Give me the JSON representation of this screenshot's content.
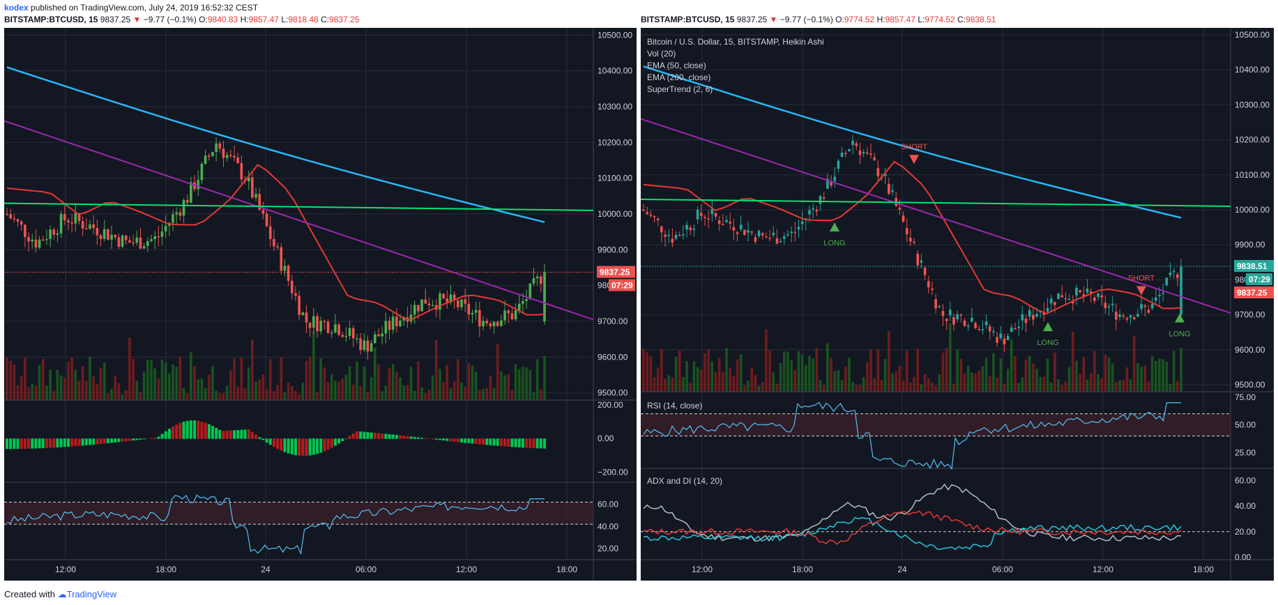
{
  "header": {
    "author": "kodex",
    "published": "published on TradingView.com, July 24, 2019 16:52:32 CEST"
  },
  "left": {
    "symbol": "BITSTAMP:BTCUSD, 15",
    "last": "9837.25",
    "change": "−9.77 (−0.1%)",
    "o_label": "O:",
    "o": "9840.83",
    "h_label": "H:",
    "h": "9857.47",
    "l_label": "L:",
    "l": "9818.48",
    "c_label": "C:",
    "c": "9837.25",
    "price_badge": "9837.25",
    "timer_badge": "07:29"
  },
  "right": {
    "symbol": "BITSTAMP:BTCUSD, 15",
    "last": "9837.25",
    "change": "−9.77 (−0.1%)",
    "o_label": "O:",
    "o": "9774.52",
    "h_label": "H:",
    "h": "9857.47",
    "l_label": "L:",
    "l": "9774.52",
    "c_label": "C:",
    "c": "9838.51",
    "indicators": [
      "Bitcoin / U.S. Dollar, 15, BITSTAMP, Heikin Ashi",
      "Vol (20)",
      "EMA (50, close)",
      "EMA (200, close)",
      "SuperTrend (2, 6)"
    ],
    "price_badge_teal": "9838.51",
    "timer_badge": "07:29",
    "price_badge_red": "9837.25",
    "rsi_label": "RSI (14, close)",
    "adx_label": "ADX and DI (14, 20)",
    "signals": [
      "LONG",
      "SHORT",
      "LONG",
      "SHORT",
      "LONG"
    ]
  },
  "footer": {
    "created_with": "Created with",
    "brand": "TradingView"
  },
  "colors": {
    "bg": "#131722",
    "up": "#26a69a",
    "up_green": "#4caf50",
    "down": "#ef5350",
    "ema50": "#e53935",
    "ema200": "#29b6f6",
    "trend_purple": "#9c27b0",
    "trend_green": "#00e676",
    "rsi": "#4fc3f7",
    "adx": "#b0bec5"
  },
  "chart_data": [
    {
      "type": "candlestick",
      "panel": "left-main",
      "title": "BITSTAMP:BTCUSD, 15",
      "ylim": [
        9480,
        10520
      ],
      "y_ticks": [
        "10500.00",
        "10400.00",
        "10300.00",
        "10200.00",
        "10100.00",
        "10000.00",
        "9900.00",
        "9800.00",
        "9700.00",
        "9600.00",
        "9500.00"
      ],
      "x_ticks": [
        "12:00",
        "18:00",
        "24",
        "06:00",
        "12:00",
        "18:00"
      ],
      "key_points": [
        {
          "t": "08:00",
          "price": 10000
        },
        {
          "t": "10:00",
          "price": 9920
        },
        {
          "t": "12:00",
          "price": 9990
        },
        {
          "t": "14:00",
          "price": 9960
        },
        {
          "t": "16:00",
          "price": 9920
        },
        {
          "t": "18:00",
          "price": 9930
        },
        {
          "t": "20:00",
          "price": 10040
        },
        {
          "t": "21:30",
          "price": 10200
        },
        {
          "t": "23:00",
          "price": 10100
        },
        {
          "t": "00:30",
          "price": 9900
        },
        {
          "t": "01:30",
          "price": 9700
        },
        {
          "t": "03:00",
          "price": 9690
        },
        {
          "t": "05:30",
          "price": 9630
        },
        {
          "t": "08:00",
          "price": 9700
        },
        {
          "t": "10:00",
          "price": 9760
        },
        {
          "t": "12:00",
          "price": 9750
        },
        {
          "t": "14:00",
          "price": 9700
        },
        {
          "t": "15:30",
          "price": 9720
        },
        {
          "t": "16:30",
          "price": 9840
        }
      ],
      "last_price": 9837.25
    },
    {
      "type": "bar",
      "panel": "left-histogram",
      "ylim": [
        -260,
        220
      ],
      "y_ticks": [
        "200.00",
        "0.00",
        "−200.00"
      ]
    },
    {
      "type": "line",
      "panel": "left-oscillator",
      "ylim": [
        10,
        78
      ],
      "y_ticks": [
        "60.00",
        "40.00",
        "20.00"
      ]
    },
    {
      "type": "candlestick",
      "panel": "right-main",
      "title": "Bitcoin / U.S. Dollar, 15, BITSTAMP, Heikin Ashi",
      "ylim": [
        9480,
        10520
      ],
      "y_ticks": [
        "10500.00",
        "10400.00",
        "10300.00",
        "10200.00",
        "10100.00",
        "10000.00",
        "9900.00",
        "9800.00",
        "9700.00",
        "9600.00",
        "9500.00"
      ],
      "x_ticks": [
        "12:00",
        "18:00",
        "24",
        "06:00",
        "12:00",
        "18:00"
      ],
      "last_price": 9838.51
    },
    {
      "type": "line",
      "panel": "right-rsi",
      "title": "RSI (14, close)",
      "ylim": [
        12,
        78
      ],
      "y_ticks": [
        "75.00",
        "50.00",
        "25.00"
      ]
    },
    {
      "type": "line",
      "panel": "right-adx",
      "title": "ADX and DI (14, 20)",
      "ylim": [
        -2,
        68
      ],
      "y_ticks": [
        "60.00",
        "40.00",
        "20.00",
        "0.00"
      ]
    }
  ]
}
